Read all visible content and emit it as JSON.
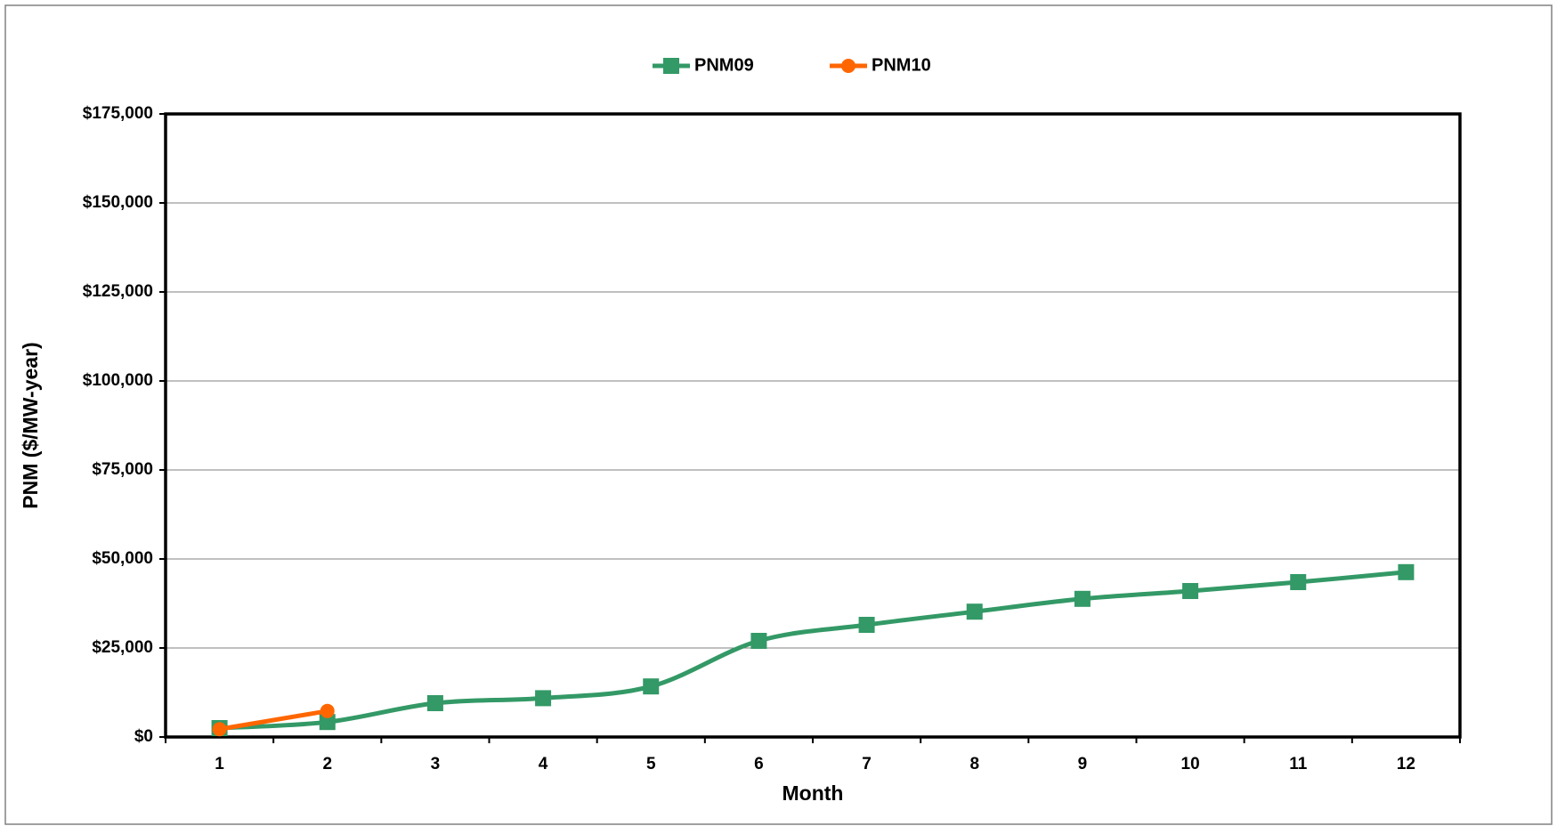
{
  "chart_data": {
    "type": "line",
    "x_label": "Month",
    "y_label": "PNM ($/MW-year)",
    "categories": [
      "1",
      "2",
      "3",
      "4",
      "5",
      "6",
      "7",
      "8",
      "9",
      "10",
      "11",
      "12"
    ],
    "series": [
      {
        "name": "PNM09",
        "color": "#339966",
        "marker": "square",
        "smooth": true,
        "values": [
          2500,
          4200,
          9500,
          10900,
          14200,
          27000,
          31500,
          35200,
          38800,
          41000,
          43500,
          46300
        ]
      },
      {
        "name": "PNM10",
        "color": "#ff6600",
        "marker": "circle",
        "smooth": false,
        "values": [
          2200,
          7300,
          null,
          null,
          null,
          null,
          null,
          null,
          null,
          null,
          null,
          null
        ]
      }
    ],
    "ylim": [
      0,
      175000
    ],
    "yticks": [
      {
        "value": 0,
        "label": "$0"
      },
      {
        "value": 25000,
        "label": "$25,000"
      },
      {
        "value": 50000,
        "label": "$50,000"
      },
      {
        "value": 75000,
        "label": "$75,000"
      },
      {
        "value": 100000,
        "label": "$100,000"
      },
      {
        "value": 125000,
        "label": "$125,000"
      },
      {
        "value": 150000,
        "label": "$150,000"
      },
      {
        "value": 175000,
        "label": "$175,000"
      }
    ],
    "grid": true,
    "legend_position": "top"
  }
}
